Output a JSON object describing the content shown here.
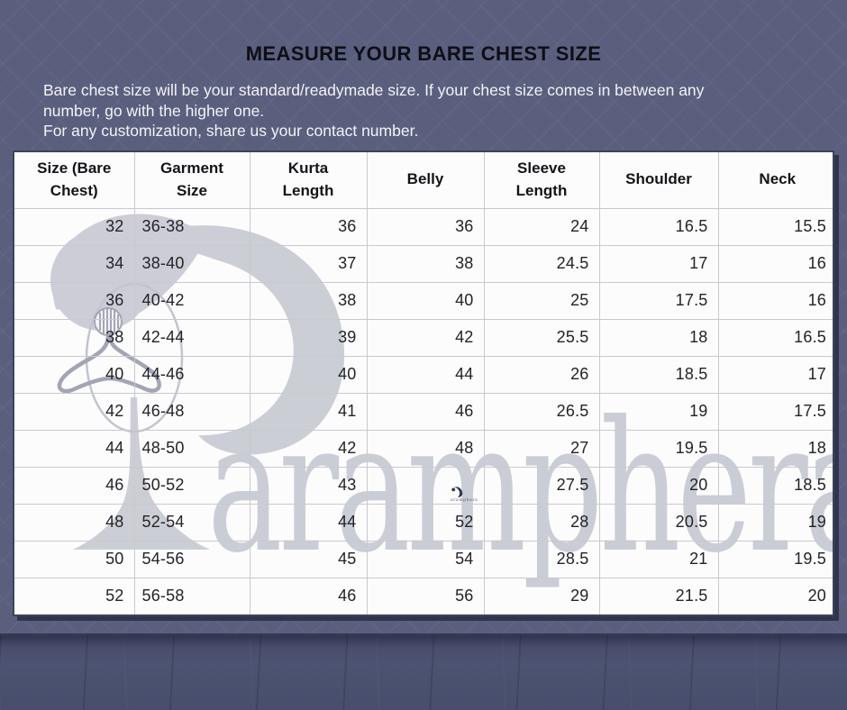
{
  "header": {
    "title": "MEASURE YOUR BARE CHEST SIZE",
    "description_lines": [
      "Bare chest size will be your standard/readymade size. If your chest size comes in between any",
      "number, go with the higher one.",
      "For any customization, share us your contact number."
    ]
  },
  "watermark": {
    "brand": "aramphera"
  },
  "chart_data": {
    "type": "table",
    "title": "MEASURE YOUR BARE CHEST SIZE",
    "columns": [
      "Size (Bare Chest)",
      "Garment Size",
      "Kurta Length",
      "Belly",
      "Sleeve Length",
      "Shoulder",
      "Neck"
    ],
    "rows": [
      [
        "32",
        "36-38",
        "36",
        "36",
        "24",
        "16.5",
        "15.5"
      ],
      [
        "34",
        "38-40",
        "37",
        "38",
        "24.5",
        "17",
        "16"
      ],
      [
        "36",
        "40-42",
        "38",
        "40",
        "25",
        "17.5",
        "16"
      ],
      [
        "38",
        "42-44",
        "39",
        "42",
        "25.5",
        "18",
        "16.5"
      ],
      [
        "40",
        "44-46",
        "40",
        "44",
        "26",
        "18.5",
        "17"
      ],
      [
        "42",
        "46-48",
        "41",
        "46",
        "26.5",
        "19",
        "17.5"
      ],
      [
        "44",
        "48-50",
        "42",
        "48",
        "27",
        "19.5",
        "18"
      ],
      [
        "46",
        "50-52",
        "43",
        "",
        "27.5",
        "20",
        "18.5"
      ],
      [
        "48",
        "52-54",
        "44",
        "52",
        "28",
        "20.5",
        "19"
      ],
      [
        "50",
        "54-56",
        "45",
        "54",
        "28.5",
        "21",
        "19.5"
      ],
      [
        "52",
        "56-58",
        "46",
        "56",
        "29",
        "21.5",
        "20"
      ]
    ]
  },
  "colors": {
    "wall": "#5a5f7e",
    "floor": "#4c5270",
    "table_background": "#fcfcfd",
    "grid_line": "#c9c9ce",
    "outer_border": "#3e4359",
    "title_text": "#0e0e16",
    "description_text": "#f3f3f6",
    "cell_text": "#232328",
    "watermark_gray": "#c6c8d2"
  }
}
